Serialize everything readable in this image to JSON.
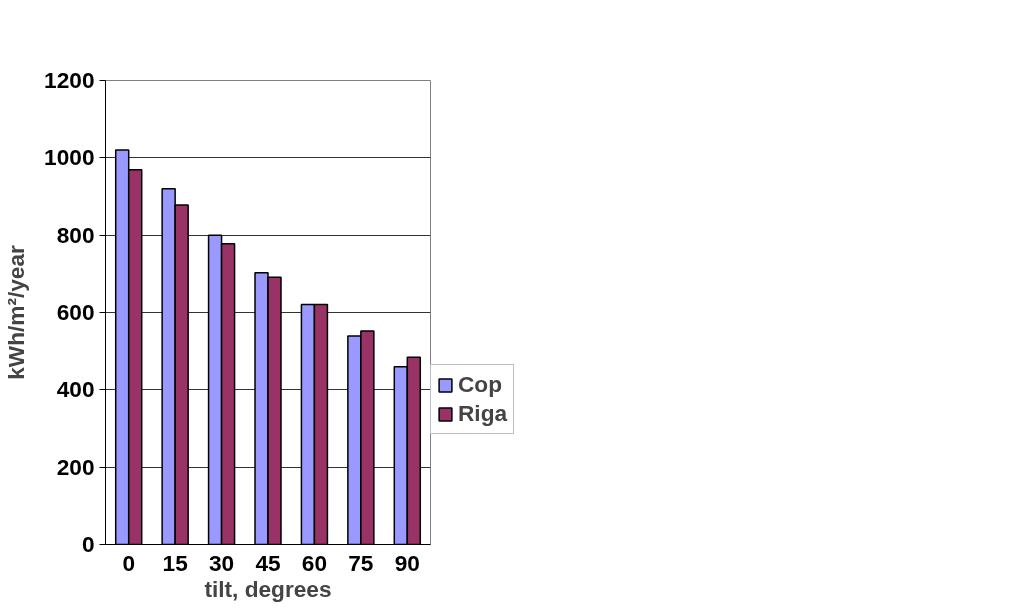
{
  "chart_data": {
    "type": "bar",
    "xlabel": "tilt, degrees",
    "ylabel": "kWh/m²/year",
    "categories": [
      "0",
      "15",
      "30",
      "45",
      "60",
      "75",
      "90"
    ],
    "series": [
      {
        "name": "Cop",
        "color": "#9999ff",
        "values": [
          1020,
          920,
          800,
          703,
          621,
          539,
          460
        ]
      },
      {
        "name": "Riga",
        "color": "#993366",
        "values": [
          969,
          878,
          778,
          691,
          621,
          552,
          484
        ]
      }
    ],
    "ylim": [
      0,
      1200
    ],
    "yticks": [
      0,
      200,
      400,
      600,
      800,
      1000,
      1200
    ],
    "grid": "y",
    "legend": "right"
  }
}
